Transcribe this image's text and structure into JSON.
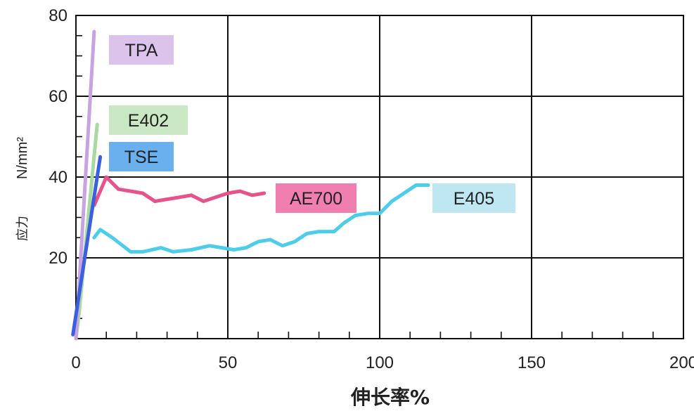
{
  "chart_data": {
    "type": "line",
    "title": "",
    "xlabel": "伸长率%",
    "ylabel": "应力 N/mm²",
    "ylabel_parts": [
      "应力",
      "N/mm²"
    ],
    "xlim": [
      0,
      200
    ],
    "ylim": [
      0,
      80
    ],
    "x_ticks": [
      0,
      50,
      100,
      150,
      200
    ],
    "y_ticks": [
      20,
      40,
      60,
      80
    ],
    "grid": true,
    "series": [
      {
        "name": "TPA",
        "color": "#c8a3e2",
        "label_bg": "#dcc3ec",
        "x": [
          0,
          6
        ],
        "y": [
          0,
          76
        ]
      },
      {
        "name": "E402",
        "color": "#a8d9a0",
        "label_bg": "#c9e8c3",
        "x": [
          0,
          1,
          7
        ],
        "y": [
          0,
          6,
          53
        ]
      },
      {
        "name": "TSE",
        "color": "#3a5fe0",
        "label_bg": "#6ab0ec",
        "x": [
          -1,
          8
        ],
        "y": [
          1,
          45
        ]
      },
      {
        "name": "AE700",
        "color": "#e8528c",
        "label_bg": "#f07fb0",
        "x": [
          6,
          10,
          14,
          18,
          22,
          26,
          30,
          34,
          38,
          42,
          46,
          50,
          54,
          58,
          62
        ],
        "y": [
          33,
          40,
          37,
          36.5,
          36,
          34,
          34.5,
          35,
          35.5,
          34,
          35,
          36,
          36.5,
          35.5,
          36
        ]
      },
      {
        "name": "E405",
        "color": "#4ccdea",
        "label_bg": "#bfe7f1",
        "x": [
          6,
          8,
          12,
          18,
          22,
          28,
          32,
          38,
          44,
          48,
          52,
          56,
          60,
          64,
          68,
          72,
          76,
          80,
          85,
          88,
          92,
          96,
          100,
          104,
          108,
          112,
          116
        ],
        "y": [
          25,
          27,
          25,
          21.5,
          21.5,
          22.5,
          21.5,
          22,
          23,
          22.5,
          22,
          22.5,
          24,
          24.5,
          23,
          24,
          26,
          26.5,
          26.5,
          28.5,
          30.5,
          31,
          31,
          34,
          36,
          38,
          38
        ]
      }
    ]
  }
}
